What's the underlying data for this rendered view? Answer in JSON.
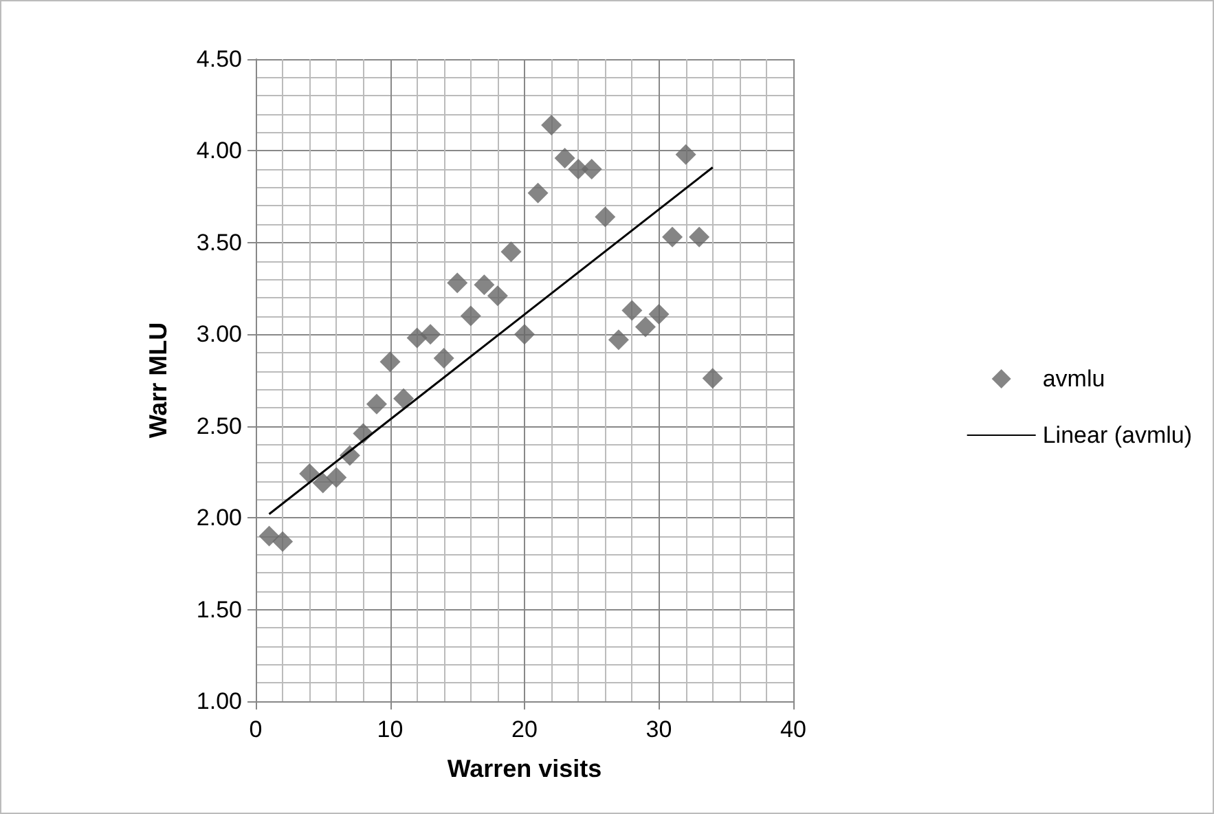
{
  "chart_data": {
    "type": "scatter",
    "xlabel": "Warren visits",
    "ylabel": "Warr MLU",
    "xlim": [
      0,
      40
    ],
    "xticks": [
      0,
      10,
      20,
      30,
      40
    ],
    "ylim": [
      1,
      4.5
    ],
    "yticks": [
      {
        "value": 1,
        "label": "1.00"
      },
      {
        "value": 1.5,
        "label": "1.50"
      },
      {
        "value": 2,
        "label": "2.00"
      },
      {
        "value": 2.5,
        "label": "2.50"
      },
      {
        "value": 3,
        "label": "3.00"
      },
      {
        "value": 3.5,
        "label": "3.50"
      },
      {
        "value": 4,
        "label": "4.00"
      },
      {
        "value": 4.5,
        "label": "4.50"
      }
    ],
    "grid": true,
    "legend": "right",
    "marker": "diamond",
    "series": [
      {
        "name": "avmlu",
        "color": "#666666",
        "x": [
          1,
          2,
          4,
          5,
          6,
          7,
          8,
          9,
          10,
          11,
          12,
          13,
          14,
          15,
          16,
          17,
          18,
          19,
          20,
          21,
          22,
          23,
          24,
          25,
          26,
          27,
          28,
          29,
          30,
          31,
          32,
          33,
          34
        ],
        "values": [
          1.9,
          1.87,
          2.24,
          2.19,
          2.22,
          2.34,
          2.46,
          2.62,
          2.85,
          2.65,
          2.98,
          3.0,
          2.87,
          3.28,
          3.1,
          3.27,
          3.21,
          3.45,
          3.0,
          3.77,
          4.14,
          3.96,
          3.9,
          3.9,
          3.64,
          2.97,
          3.13,
          3.04,
          3.11,
          3.53,
          3.98,
          3.53,
          2.76
        ]
      },
      {
        "name": "Linear (avmlu)",
        "type": "line",
        "color": "#000000",
        "marker": "none",
        "line_style": "solid",
        "x": [
          1,
          34
        ],
        "values": [
          2.02,
          3.91
        ]
      }
    ]
  }
}
